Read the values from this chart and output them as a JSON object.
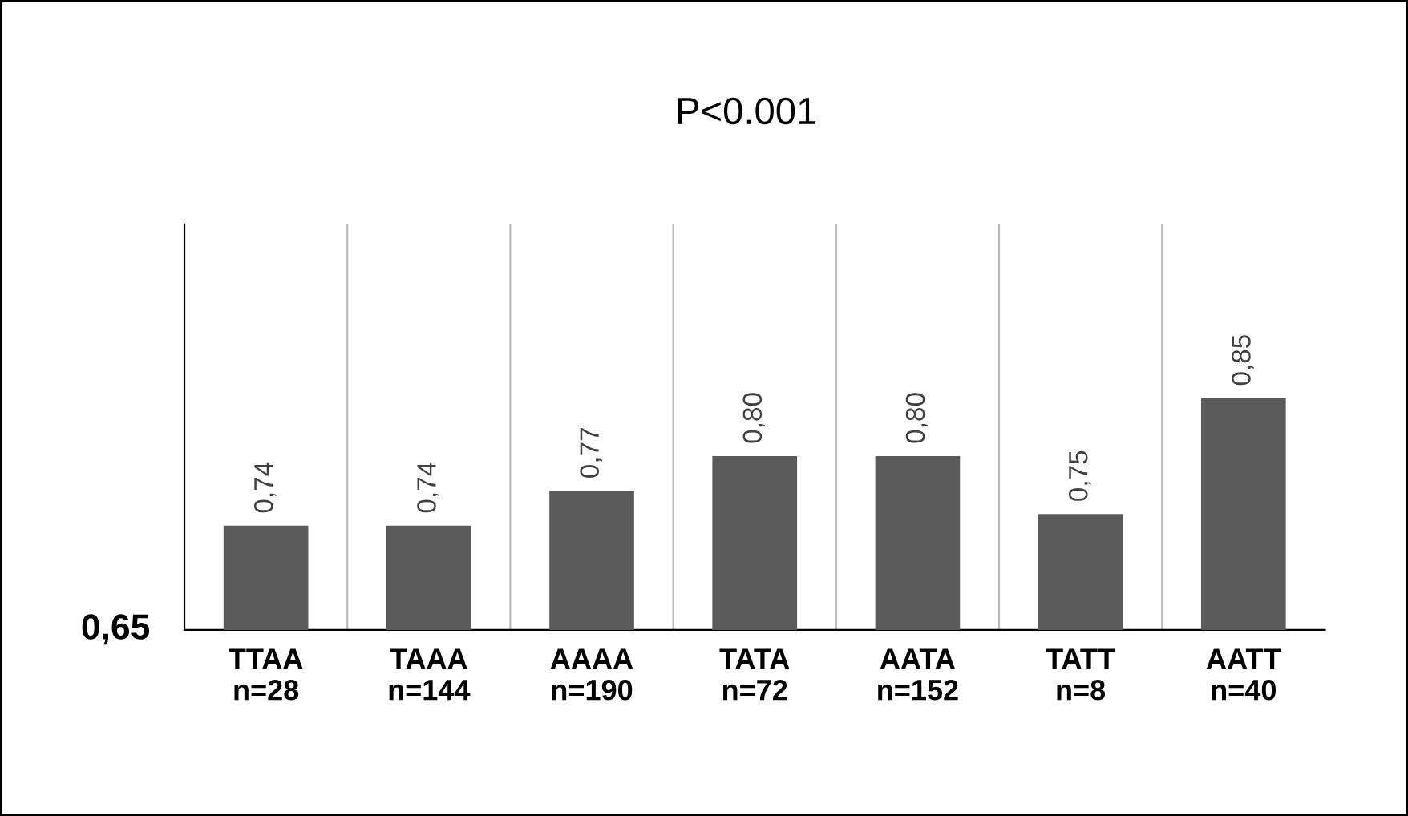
{
  "chart_data": {
    "type": "bar",
    "title": "P<0.001",
    "categories": [
      "TTAA\nn=28",
      "TAAA\nn=144",
      "AAAA\nn=190",
      "TATA\nn=72",
      "AATA\nn=152",
      "TATT\nn=8",
      "AATT\nn=40"
    ],
    "values": [
      0.74,
      0.74,
      0.77,
      0.8,
      0.8,
      0.75,
      0.85
    ],
    "value_labels": [
      "0,74",
      "0,74",
      "0,77",
      "0,80",
      "0,80",
      "0,75",
      "0,85"
    ],
    "ylim": [
      0.65,
      1.0
    ],
    "color": "#5a5a5a",
    "annotations": [
      "0,65"
    ],
    "grid": "x"
  }
}
